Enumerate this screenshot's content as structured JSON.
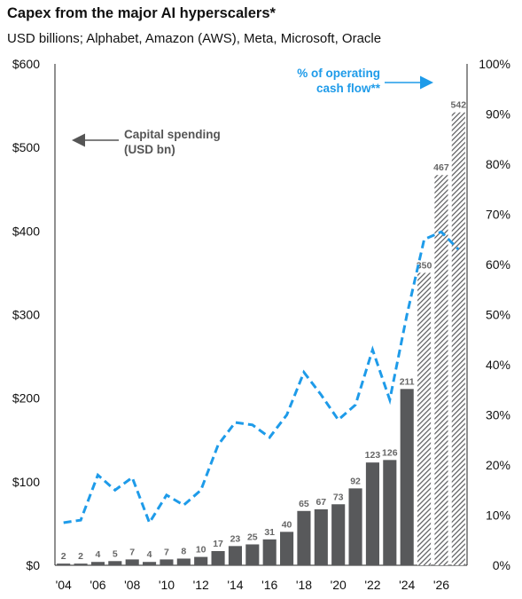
{
  "header": {
    "title": "Capex from the major AI hyperscalers*",
    "subtitle": "USD billions; Alphabet, Amazon (AWS), Meta, Microsoft, Oracle"
  },
  "colors": {
    "bar_actual": "#58595b",
    "bar_forecast_hatch": "#58595b",
    "line": "#1e9be9",
    "annotation_gray": "#555555"
  },
  "chart_data": {
    "type": "bar",
    "categories": [
      "2004",
      "2005",
      "2006",
      "2007",
      "2008",
      "2009",
      "2010",
      "2011",
      "2012",
      "2013",
      "2014",
      "2015",
      "2016",
      "2017",
      "2018",
      "2019",
      "2020",
      "2021",
      "2022",
      "2023",
      "2024",
      "2025",
      "2026",
      "2027"
    ],
    "x_tick_labels": [
      "'04",
      "'06",
      "'08",
      "'10",
      "'12",
      "'14",
      "'16",
      "'18",
      "'20",
      "'22",
      "'24",
      "'26"
    ],
    "series": [
      {
        "name": "Capital spending (USD bn)",
        "axis": "left",
        "values": [
          2,
          2,
          4,
          5,
          7,
          4,
          7,
          8,
          10,
          17,
          23,
          25,
          31,
          40,
          65,
          67,
          73,
          92,
          123,
          126,
          211,
          350,
          467,
          542
        ],
        "forecast_from_index": 21
      },
      {
        "name": "% of operating cash flow**",
        "axis": "right",
        "type": "line",
        "style": "dashed",
        "values": [
          8.5,
          9,
          18,
          15,
          17.5,
          8.5,
          14,
          12,
          15,
          24,
          28.5,
          28,
          25.5,
          30,
          38.5,
          34,
          29,
          32,
          43,
          33,
          50,
          65,
          66.5,
          63
        ]
      }
    ],
    "y_left": {
      "ticks": [
        "$0",
        "$100",
        "$200",
        "$300",
        "$400",
        "$500",
        "$600"
      ],
      "lim": [
        0,
        600
      ]
    },
    "y_right": {
      "ticks": [
        "0%",
        "10%",
        "20%",
        "30%",
        "40%",
        "50%",
        "60%",
        "70%",
        "80%",
        "90%",
        "100%"
      ],
      "lim": [
        0,
        100
      ]
    },
    "annotations": {
      "capital_line1": "Capital spending",
      "capital_line2": "(USD bn)",
      "ocf_line1": "% of operating",
      "ocf_line2": "cash flow**"
    },
    "grid": false
  }
}
